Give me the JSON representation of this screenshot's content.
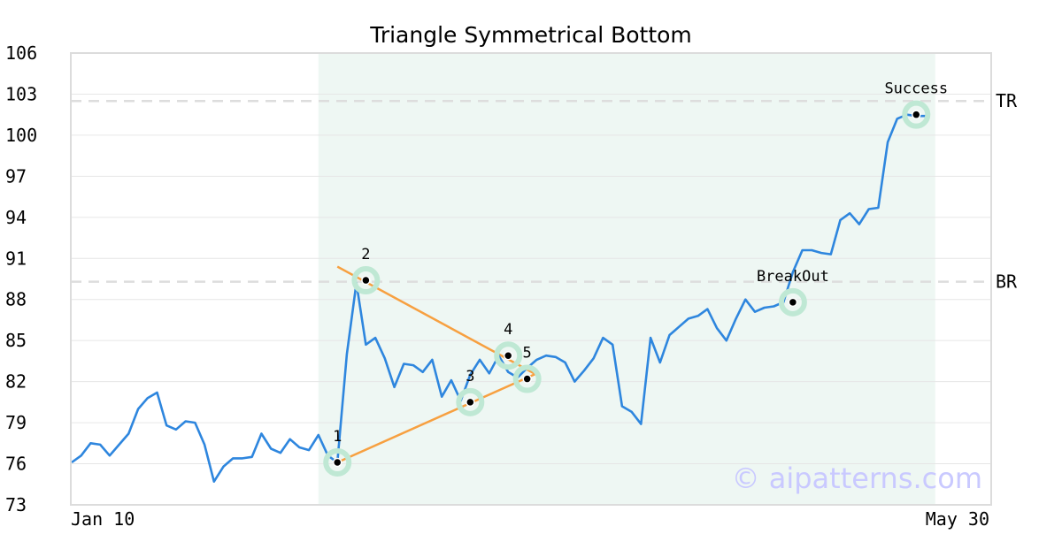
{
  "chart_data": {
    "type": "line",
    "title": "Triangle Symmetrical Bottom",
    "xlabel": "",
    "ylabel": "",
    "x_tick_labels": [
      "Jan 10",
      "May 30"
    ],
    "y_ticks": [
      73,
      76,
      79,
      82,
      85,
      88,
      91,
      94,
      97,
      100,
      103,
      106
    ],
    "ylim": [
      73,
      106
    ],
    "grid": "horizontal",
    "pattern_period": {
      "start_index": 26,
      "end_index": 91
    },
    "series": [
      {
        "color": "#2e86de",
        "values": [
          76.1,
          76.6,
          77.5,
          77.4,
          76.6,
          77.4,
          78.2,
          80.0,
          80.8,
          81.2,
          78.8,
          78.5,
          79.1,
          79.0,
          77.4,
          74.7,
          75.8,
          76.4,
          76.4,
          76.5,
          78.2,
          77.1,
          76.8,
          77.8,
          77.2,
          77.0,
          78.1,
          76.6,
          76.1,
          84.0,
          89.2,
          84.7,
          85.2,
          83.7,
          81.6,
          83.3,
          83.2,
          82.7,
          83.6,
          80.9,
          82.1,
          80.6,
          82.5,
          83.6,
          82.6,
          83.9,
          82.7,
          82.3,
          83.0,
          83.6,
          83.9,
          83.8,
          83.4,
          82.0,
          82.8,
          83.7,
          85.2,
          84.7,
          80.2,
          79.8,
          78.9,
          85.2,
          83.4,
          85.4,
          86.0,
          86.6,
          86.8,
          87.3,
          85.9,
          85.0,
          86.6,
          88.0,
          87.1,
          87.4,
          87.5,
          87.8,
          90.0,
          91.6,
          91.6,
          91.4,
          91.3,
          93.8,
          94.3,
          93.5,
          94.6,
          94.7,
          99.5,
          101.2,
          101.5,
          101.4,
          101.4
        ]
      }
    ],
    "levels": [
      {
        "label": "TR",
        "value": 102.5,
        "color": "#dddddd"
      },
      {
        "label": "BR",
        "value": 89.3,
        "color": "#dddddd"
      }
    ],
    "trend_lines": [
      {
        "color": "#f7a040",
        "from": {
          "index": 28,
          "value": 76.1
        },
        "to": {
          "index": 49,
          "value": 82.6
        }
      },
      {
        "color": "#f7a040",
        "from": {
          "index": 28,
          "value": 90.4
        },
        "to": {
          "index": 49,
          "value": 82.5
        }
      }
    ],
    "annotations": [
      {
        "label": "1",
        "index": 28,
        "value": 76.1
      },
      {
        "label": "2",
        "index": 31,
        "value": 89.4
      },
      {
        "label": "3",
        "index": 42,
        "value": 80.5
      },
      {
        "label": "4",
        "index": 46,
        "value": 83.9
      },
      {
        "label": "5",
        "index": 48,
        "value": 82.2
      },
      {
        "label": "BreakOut",
        "index": 76,
        "value": 87.8
      },
      {
        "label": "Success",
        "index": 89,
        "value": 101.5
      }
    ],
    "colors": {
      "shade": "#eef7f3",
      "halo": "#bfe8d4",
      "marker": "#000000"
    }
  },
  "watermark": "© aipatterns.com"
}
